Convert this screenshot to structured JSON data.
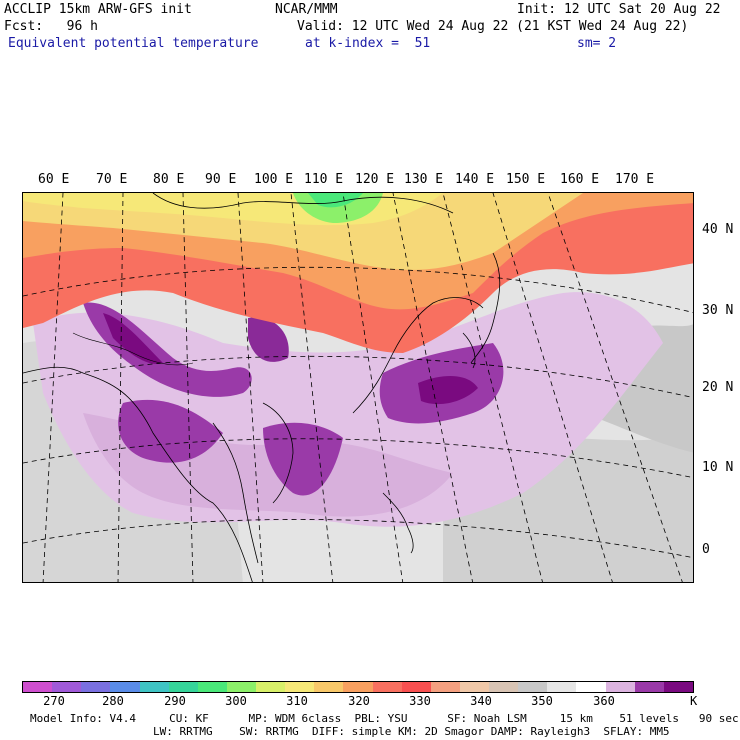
{
  "header": {
    "model": "ACCLIP 15km ARW-GFS init",
    "org": "NCAR/MMM",
    "init": "Init: 12 UTC Sat 20 Aug 22",
    "fcst": "Fcst:   96 h",
    "valid": "Valid: 12 UTC Wed 24 Aug 22 (21 KST Wed 24 Aug 22)",
    "field": "Equivalent potential temperature",
    "level": "at k-index =  51",
    "smooth": "sm= 2"
  },
  "lon_labels": [
    "60 E",
    "70 E",
    "80 E",
    "90 E",
    "100 E",
    "110 E",
    "120 E",
    "130 E",
    "140 E",
    "150 E",
    "160 E",
    "170 E"
  ],
  "lat_labels": [
    "40 N",
    "30 N",
    "20 N",
    "10 N",
    "0"
  ],
  "colorbar": {
    "colors": [
      "#cf4fcf",
      "#a05ad8",
      "#7a70e0",
      "#5a8ce8",
      "#3fc4c4",
      "#36d49a",
      "#4ae87a",
      "#8cf06a",
      "#d8f06a",
      "#f6e878",
      "#f8c86a",
      "#f8a060",
      "#f87060",
      "#f85050",
      "#f4a080",
      "#f0c8a8",
      "#d8c4b4",
      "#c8c8c8",
      "#e6e6e6",
      "#ffffff",
      "#dcb4e0",
      "#9a3aa8",
      "#7a0a80"
    ],
    "ticks": [
      "270",
      "280",
      "290",
      "300",
      "310",
      "320",
      "330",
      "340",
      "350",
      "360"
    ],
    "unit": "K"
  },
  "footer": {
    "line1": "Model Info: V4.4     CU: KF      MP: WDM 6class  PBL: YSU      SF: Noah LSM     15 km    51 levels   90 sec",
    "line2": "LW: RRTMG    SW: RRTMG  DIFF: simple KM: 2D Smagor DAMP: Rayleigh3  SFLAY: MM5"
  }
}
